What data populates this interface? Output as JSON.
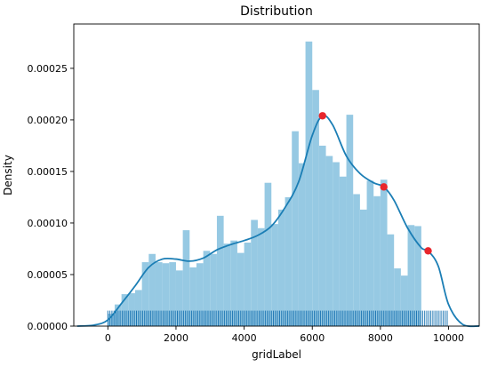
{
  "chart_data": {
    "type": "bar",
    "title": "Distribution",
    "xlabel": "gridLabel",
    "ylabel": "Density",
    "xlim": [
      -1000,
      10900
    ],
    "ylim": [
      0,
      0.000293
    ],
    "x_ticks": [
      {
        "value": 0,
        "label": "0"
      },
      {
        "value": 2000,
        "label": "2000"
      },
      {
        "value": 4000,
        "label": "4000"
      },
      {
        "value": 6000,
        "label": "6000"
      },
      {
        "value": 8000,
        "label": "8000"
      },
      {
        "value": 10000,
        "label": "10000"
      }
    ],
    "y_ticks": [
      {
        "value": 0,
        "label": "0.00000"
      },
      {
        "value": 5e-05,
        "label": "0.00005"
      },
      {
        "value": 0.0001,
        "label": "0.00010"
      },
      {
        "value": 0.00015,
        "label": "0.00015"
      },
      {
        "value": 0.0002,
        "label": "0.00020"
      },
      {
        "value": 0.00025,
        "label": "0.00025"
      }
    ],
    "grid": false,
    "histogram": {
      "bin_start": 0,
      "bin_width": 200,
      "values": [
        1.2e-05,
        2.1e-05,
        3.1e-05,
        3.2e-05,
        3.5e-05,
        6.2e-05,
        7e-05,
        6.2e-05,
        6.1e-05,
        6.2e-05,
        5.4e-05,
        9.3e-05,
        5.7e-05,
        6.1e-05,
        7.3e-05,
        7e-05,
        0.000107,
        8e-05,
        8.3e-05,
        7.1e-05,
        8.1e-05,
        0.000103,
        9.5e-05,
        0.000139,
        9.9e-05,
        0.000113,
        0.000125,
        0.000189,
        0.000158,
        0.000276,
        0.000229,
        0.000175,
        0.000165,
        0.000159,
        0.000145,
        0.000205,
        0.000128,
        0.000113,
        0.000141,
        0.000126,
        0.000142,
        8.9e-05,
        5.6e-05,
        4.9e-05,
        9.8e-05,
        9.7e-05
      ]
    },
    "kde": {
      "x": [
        -900,
        -400,
        0,
        400,
        800,
        1200,
        1600,
        2000,
        2400,
        2800,
        3200,
        3600,
        4000,
        4400,
        4800,
        5200,
        5600,
        6000,
        6300,
        6600,
        7000,
        7400,
        7800,
        8100,
        8400,
        8800,
        9200,
        9400,
        9700,
        10000,
        10400,
        10900
      ],
      "y": [
        0,
        1e-06,
        6e-06,
        2.2e-05,
        3.9e-05,
        5.7e-05,
        6.5e-05,
        6.5e-05,
        6.3e-05,
        6.6e-05,
        7.4e-05,
        7.9e-05,
        8.3e-05,
        8.8e-05,
        9.7e-05,
        0.000115,
        0.00014,
        0.000185,
        0.000204,
        0.000195,
        0.000165,
        0.000148,
        0.000139,
        0.000135,
        0.000122,
        9.5e-05,
        7.6e-05,
        7.3e-05,
        5.8e-05,
        2.1e-05,
        2e-06,
        0
      ]
    },
    "markers": [
      {
        "x": 6300,
        "y": 0.000204
      },
      {
        "x": 8100,
        "y": 0.000135
      },
      {
        "x": 9400,
        "y": 7.3e-05
      }
    ],
    "rug": {
      "start": 0,
      "end": 10000,
      "step": 60,
      "height_value": 1.5e-05
    },
    "colors": {
      "hist": "#96c9e3",
      "kde": "#1b7eb5",
      "rug": "#1f77b4",
      "marker": "#e8262c",
      "axes": "#000000"
    }
  }
}
